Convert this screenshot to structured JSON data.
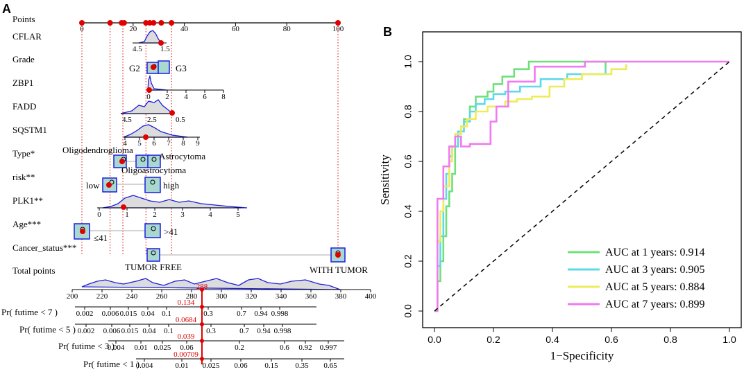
{
  "chart_data": [
    {
      "panel_label": "A",
      "type": "nomogram",
      "points_axis": {
        "label": "Points",
        "ticks": [
          "0",
          "20",
          "40",
          "60",
          "80",
          "100"
        ]
      },
      "variables": [
        {
          "name": "CFLAR",
          "ticks": [
            "4.5",
            "1.5"
          ]
        },
        {
          "name": "Grade",
          "ticks": [
            "G2",
            "G3"
          ]
        },
        {
          "name": "ZBP1",
          "ticks": [
            "0",
            "2",
            "4",
            "6",
            "8"
          ]
        },
        {
          "name": "FADD",
          "ticks": [
            "4.5",
            "2.5",
            "0.5"
          ]
        },
        {
          "name": "SQSTM1",
          "ticks": [
            "4",
            "5",
            "6",
            "7",
            "8",
            "9"
          ]
        },
        {
          "name": "Type*",
          "ticks": [
            "Oligodendroglioma",
            "Astrocytoma",
            "Oligoastrocytoma"
          ]
        },
        {
          "name": "risk**",
          "ticks": [
            "low",
            "high"
          ]
        },
        {
          "name": "PLK1**",
          "ticks": [
            "0",
            "1",
            "2",
            "3",
            "4",
            "5"
          ]
        },
        {
          "name": "Age***",
          "ticks": [
            "≤41",
            ">41"
          ]
        },
        {
          "name": "Cancer_status***",
          "ticks": [
            "TUMOR FREE",
            "WITH TUMOR"
          ]
        }
      ],
      "total_points": {
        "label": "Total points",
        "ticks": [
          "200",
          "220",
          "240",
          "260",
          "280",
          "300",
          "320",
          "340",
          "360",
          "380",
          "400"
        ],
        "value": "288"
      },
      "probability_axes": [
        {
          "label": "Pr( futime < 7 )",
          "ticks": [
            "0.002",
            "0.006",
            "0.015",
            "0.04",
            "0.1",
            "0.3",
            "0.7",
            "0.94",
            "0.998"
          ],
          "value": "0.134"
        },
        {
          "label": "Pr( futime < 5 )",
          "ticks": [
            "0.002",
            "0.006",
            "0.015",
            "0.04",
            "0.1",
            "0.3",
            "0.7",
            "0.94",
            "0.998"
          ],
          "value": "0.0684"
        },
        {
          "label": "Pr( futime < 3 )",
          "ticks": [
            "0.004",
            "0.01",
            "0.025",
            "0.06",
            "0.2",
            "0.6",
            "0.92",
            "0.997"
          ],
          "value": "0.039"
        },
        {
          "label": "Pr( futime < 1 )",
          "ticks": [
            "0.004",
            "0.01",
            "0.025",
            "0.06",
            "0.15",
            "0.35",
            "0.65"
          ],
          "value": "0.00709"
        }
      ]
    },
    {
      "panel_label": "B",
      "type": "line",
      "xlabel": "1−Specificity",
      "ylabel": "Sensitivity",
      "xlim": [
        0,
        1
      ],
      "ylim": [
        0,
        1
      ],
      "xticks": [
        "0.0",
        "0.2",
        "0.4",
        "0.6",
        "0.8",
        "1.0"
      ],
      "yticks": [
        "0.0",
        "0.2",
        "0.4",
        "0.6",
        "0.8",
        "1.0"
      ],
      "legend_position": "bottom-right",
      "series": [
        {
          "name": "AUC at 1 years: 0.914",
          "color": "#6fe07a",
          "x": [
            0,
            0.01,
            0.01,
            0.02,
            0.02,
            0.03,
            0.03,
            0.04,
            0.04,
            0.05,
            0.05,
            0.06,
            0.06,
            0.07,
            0.07,
            0.08,
            0.08,
            0.09,
            0.09,
            0.1,
            0.1,
            0.12,
            0.12,
            0.14,
            0.14,
            0.16,
            0.16,
            0.18,
            0.18,
            0.2,
            0.2,
            0.23,
            0.23,
            0.27,
            0.27,
            0.32,
            0.32,
            0.58,
            0.58
          ],
          "y": [
            0,
            0,
            0.12,
            0.12,
            0.2,
            0.2,
            0.3,
            0.3,
            0.42,
            0.42,
            0.48,
            0.48,
            0.55,
            0.55,
            0.66,
            0.66,
            0.71,
            0.71,
            0.74,
            0.74,
            0.77,
            0.77,
            0.82,
            0.82,
            0.86,
            0.86,
            0.86,
            0.86,
            0.88,
            0.88,
            0.91,
            0.91,
            0.94,
            0.94,
            0.97,
            0.97,
            1.0,
            1.0,
            0.97
          ]
        },
        {
          "name": "AUC at 3 years: 0.905",
          "color": "#5fd8e8",
          "x": [
            0,
            0.01,
            0.01,
            0.02,
            0.02,
            0.03,
            0.03,
            0.04,
            0.04,
            0.05,
            0.05,
            0.06,
            0.06,
            0.08,
            0.08,
            0.1,
            0.1,
            0.12,
            0.12,
            0.14,
            0.14,
            0.17,
            0.17,
            0.2,
            0.2,
            0.24,
            0.24,
            0.29,
            0.29,
            0.36,
            0.36,
            0.45,
            0.45,
            0.58,
            0.58
          ],
          "y": [
            0,
            0,
            0.18,
            0.18,
            0.3,
            0.3,
            0.45,
            0.45,
            0.55,
            0.55,
            0.62,
            0.62,
            0.66,
            0.66,
            0.72,
            0.72,
            0.76,
            0.76,
            0.8,
            0.8,
            0.83,
            0.83,
            0.85,
            0.85,
            0.87,
            0.87,
            0.88,
            0.88,
            0.9,
            0.9,
            0.93,
            0.93,
            0.95,
            0.95,
            0.97
          ]
        },
        {
          "name": "AUC at 5 years: 0.884",
          "color": "#ecec5a",
          "x": [
            0,
            0.01,
            0.01,
            0.02,
            0.02,
            0.03,
            0.03,
            0.05,
            0.05,
            0.06,
            0.06,
            0.07,
            0.07,
            0.09,
            0.09,
            0.11,
            0.11,
            0.14,
            0.14,
            0.18,
            0.18,
            0.24,
            0.24,
            0.28,
            0.28,
            0.33,
            0.33,
            0.39,
            0.39,
            0.44,
            0.44,
            0.5,
            0.5,
            0.6,
            0.6,
            0.65,
            0.65
          ],
          "y": [
            0,
            0,
            0.28,
            0.28,
            0.4,
            0.4,
            0.5,
            0.5,
            0.6,
            0.6,
            0.66,
            0.66,
            0.71,
            0.71,
            0.74,
            0.74,
            0.77,
            0.77,
            0.8,
            0.8,
            0.82,
            0.82,
            0.84,
            0.84,
            0.85,
            0.85,
            0.86,
            0.86,
            0.9,
            0.9,
            0.93,
            0.93,
            0.95,
            0.95,
            0.97,
            0.97,
            0.99
          ]
        },
        {
          "name": "AUC at 7 years: 0.899",
          "color": "#f07af0",
          "x": [
            0,
            0.01,
            0.01,
            0.03,
            0.03,
            0.05,
            0.05,
            0.07,
            0.07,
            0.09,
            0.09,
            0.12,
            0.12,
            0.19,
            0.19,
            0.21,
            0.21,
            0.25,
            0.25,
            0.34,
            0.34,
            0.51,
            0.51,
            1.0
          ],
          "y": [
            0,
            0,
            0.45,
            0.45,
            0.58,
            0.58,
            0.66,
            0.66,
            0.7,
            0.7,
            0.66,
            0.66,
            0.67,
            0.67,
            0.76,
            0.76,
            0.82,
            0.82,
            0.92,
            0.92,
            0.98,
            0.98,
            1.0,
            1.0
          ]
        },
        {
          "name": "reference",
          "color": "#000000",
          "dashed": true,
          "x": [
            0,
            1
          ],
          "y": [
            0,
            1
          ]
        }
      ]
    }
  ]
}
